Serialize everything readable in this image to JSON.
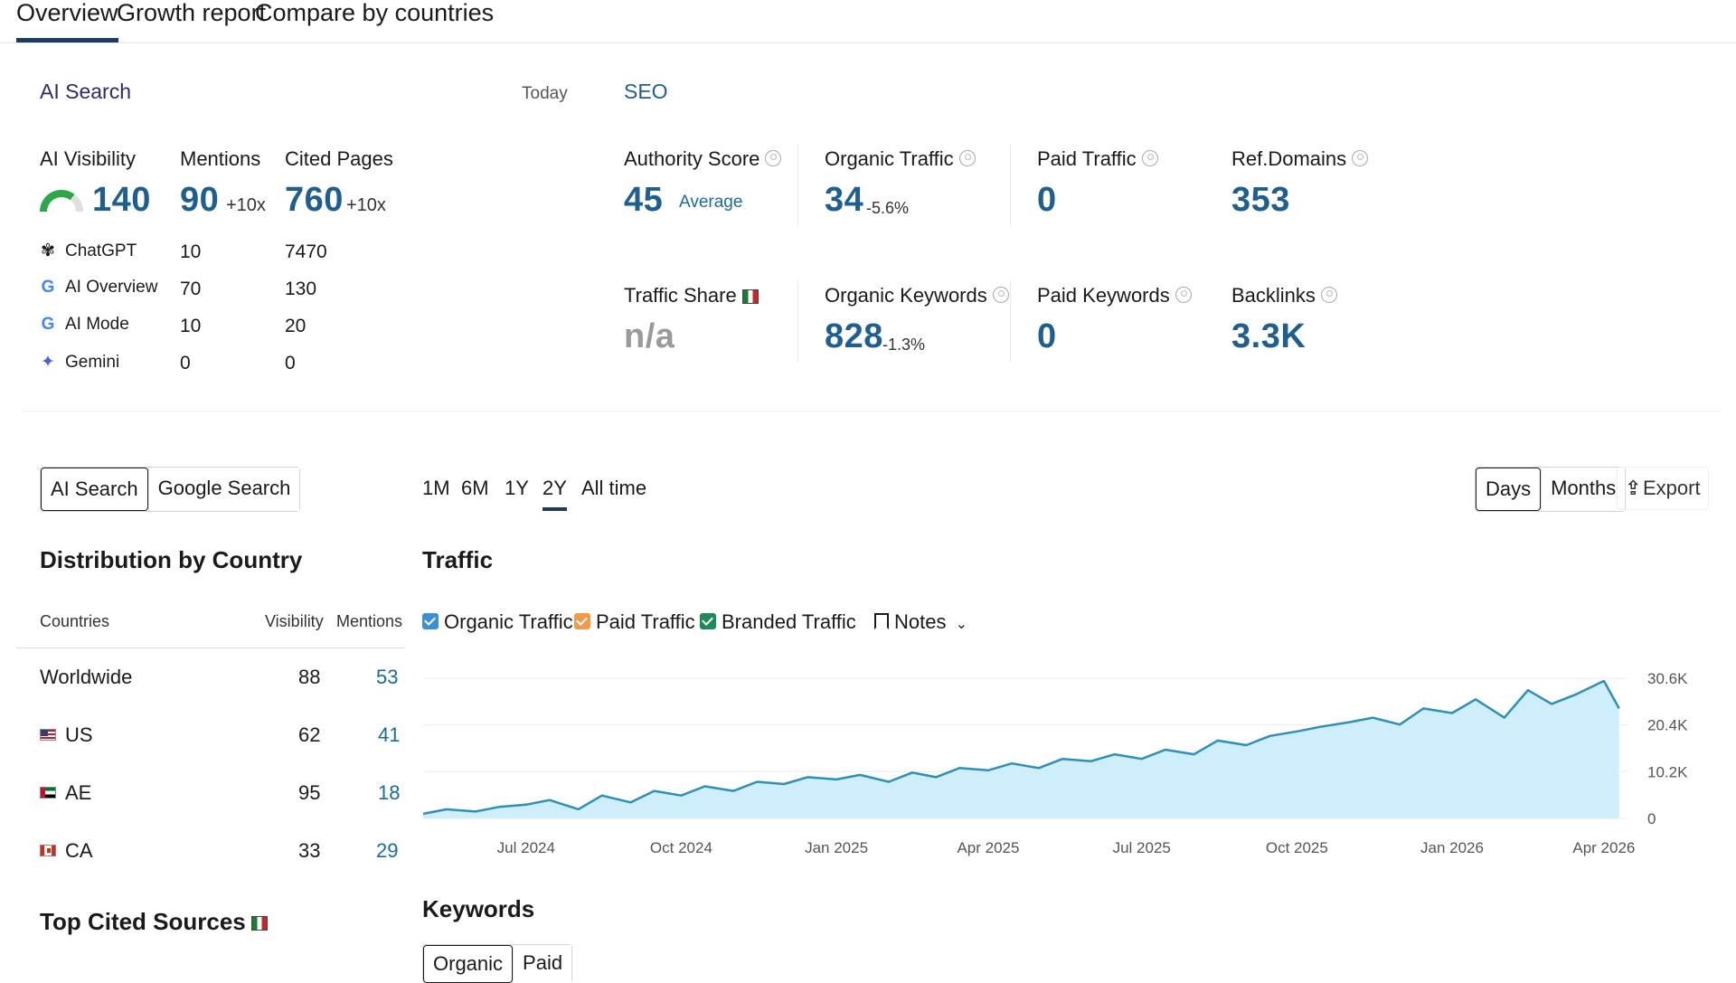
{
  "tabs": [
    {
      "label": "Overview",
      "active": true
    },
    {
      "label": "Growth report",
      "active": false
    },
    {
      "label": "Compare by countries",
      "active": false
    }
  ],
  "ai_search": {
    "heading": "AI Search",
    "today": "Today",
    "visibility_label": "AI Visibility",
    "visibility_value": "140",
    "mentions_label": "Mentions",
    "mentions_value": "90",
    "mentions_delta": "+10x",
    "cited_label": "Cited Pages",
    "cited_value": "760",
    "cited_delta": "+10x",
    "rows": [
      {
        "icon": "chatgpt-icon",
        "name": "ChatGPT",
        "mentions": "10",
        "cited": "7470"
      },
      {
        "icon": "google-icon",
        "name": "AI Overview",
        "mentions": "70",
        "cited": "130"
      },
      {
        "icon": "google-icon",
        "name": "AI Mode",
        "mentions": "10",
        "cited": "20"
      },
      {
        "icon": "gemini-icon",
        "name": "Gemini",
        "mentions": "0",
        "cited": "0"
      }
    ]
  },
  "seo": {
    "heading": "SEO",
    "authority_label": "Authority Score",
    "authority_value": "45",
    "authority_note": "Average",
    "organic_traffic_label": "Organic Traffic",
    "organic_traffic_value": "34",
    "organic_traffic_delta": "-5.6%",
    "paid_traffic_label": "Paid Traffic",
    "paid_traffic_value": "0",
    "ref_domains_label": "Ref.Domains",
    "ref_domains_value": "353",
    "traffic_share_label": "Traffic Share",
    "traffic_share_value": "n/a",
    "organic_keywords_label": "Organic Keywords",
    "organic_keywords_value": "828",
    "organic_keywords_delta": "-1.3%",
    "paid_keywords_label": "Paid Keywords",
    "paid_keywords_value": "0",
    "backlinks_label": "Backlinks",
    "backlinks_value": "3.3K"
  },
  "source_toggle": {
    "options": [
      "AI Search",
      "Google Search"
    ],
    "selected": "AI Search"
  },
  "ranges": {
    "options": [
      "1M",
      "6M",
      "1Y",
      "2Y",
      "All time"
    ],
    "selected": "2Y"
  },
  "granularity": {
    "options": [
      "Days",
      "Months"
    ],
    "selected": "Days"
  },
  "export_label": "Export",
  "distribution": {
    "title": "Distribution by Country",
    "col_countries": "Countries",
    "col_visibility": "Visibility",
    "col_mentions": "Mentions",
    "rows": [
      {
        "flag": "",
        "country": "Worldwide",
        "visibility": "88",
        "mentions": "53"
      },
      {
        "flag": "flag-us",
        "country": "US",
        "visibility": "62",
        "mentions": "41"
      },
      {
        "flag": "flag-ae",
        "country": "AE",
        "visibility": "95",
        "mentions": "18"
      },
      {
        "flag": "flag-ca",
        "country": "CA",
        "visibility": "33",
        "mentions": "29"
      }
    ]
  },
  "top_cited_title": "Top Cited Sources",
  "traffic": {
    "title": "Traffic",
    "legend": [
      {
        "label": "Organic Traffic",
        "color": "#3a8fd6"
      },
      {
        "label": "Paid Traffic",
        "color": "#f29a48"
      },
      {
        "label": "Branded Traffic",
        "color": "#1e8a5a"
      }
    ],
    "notes_label": "Notes"
  },
  "chart_data": {
    "type": "area",
    "series": [
      {
        "name": "Organic Traffic",
        "color": "#2e8fb8"
      }
    ],
    "x": [
      "2024-05-01",
      "2024-05-15",
      "2024-06-01",
      "2024-06-15",
      "2024-07-01",
      "2024-07-15",
      "2024-08-01",
      "2024-08-15",
      "2024-09-01",
      "2024-09-15",
      "2024-10-01",
      "2024-10-15",
      "2024-11-01",
      "2024-11-15",
      "2024-12-01",
      "2024-12-15",
      "2025-01-01",
      "2025-01-15",
      "2025-02-01",
      "2025-02-15",
      "2025-03-01",
      "2025-03-15",
      "2025-04-01",
      "2025-04-15",
      "2025-05-01",
      "2025-05-15",
      "2025-06-01",
      "2025-06-15",
      "2025-07-01",
      "2025-07-15",
      "2025-08-01",
      "2025-08-15",
      "2025-09-01",
      "2025-09-15",
      "2025-10-01",
      "2025-10-15",
      "2025-11-01",
      "2025-11-15",
      "2025-12-01",
      "2025-12-15",
      "2026-01-01",
      "2026-01-15",
      "2026-02-01",
      "2026-02-15",
      "2026-03-01",
      "2026-03-15",
      "2026-04-01",
      "2026-04-10"
    ],
    "values": [
      1000,
      2000,
      1500,
      2500,
      3000,
      4000,
      2000,
      5000,
      3500,
      6000,
      5000,
      7000,
      6000,
      8000,
      7500,
      9000,
      8500,
      9500,
      8000,
      10000,
      9000,
      11000,
      10500,
      12000,
      11000,
      13000,
      12500,
      14000,
      13000,
      15000,
      14000,
      17000,
      16000,
      18000,
      19000,
      20000,
      21000,
      22000,
      20500,
      24000,
      23000,
      26000,
      22000,
      28000,
      25000,
      27000,
      30000,
      24000
    ],
    "x_ticks": [
      "Jul 2024",
      "Oct 2024",
      "Jan 2025",
      "Apr 2025",
      "Jul 2025",
      "Oct 2025",
      "Jan 2026",
      "Apr 2026"
    ],
    "y_ticks": [
      "0",
      "10.2K",
      "20.4K",
      "30.6K"
    ],
    "ylim": [
      0,
      30600
    ],
    "grid": true
  },
  "keywords": {
    "title": "Keywords",
    "tabs": [
      "Organic",
      "Paid"
    ],
    "selected": "Organic"
  }
}
